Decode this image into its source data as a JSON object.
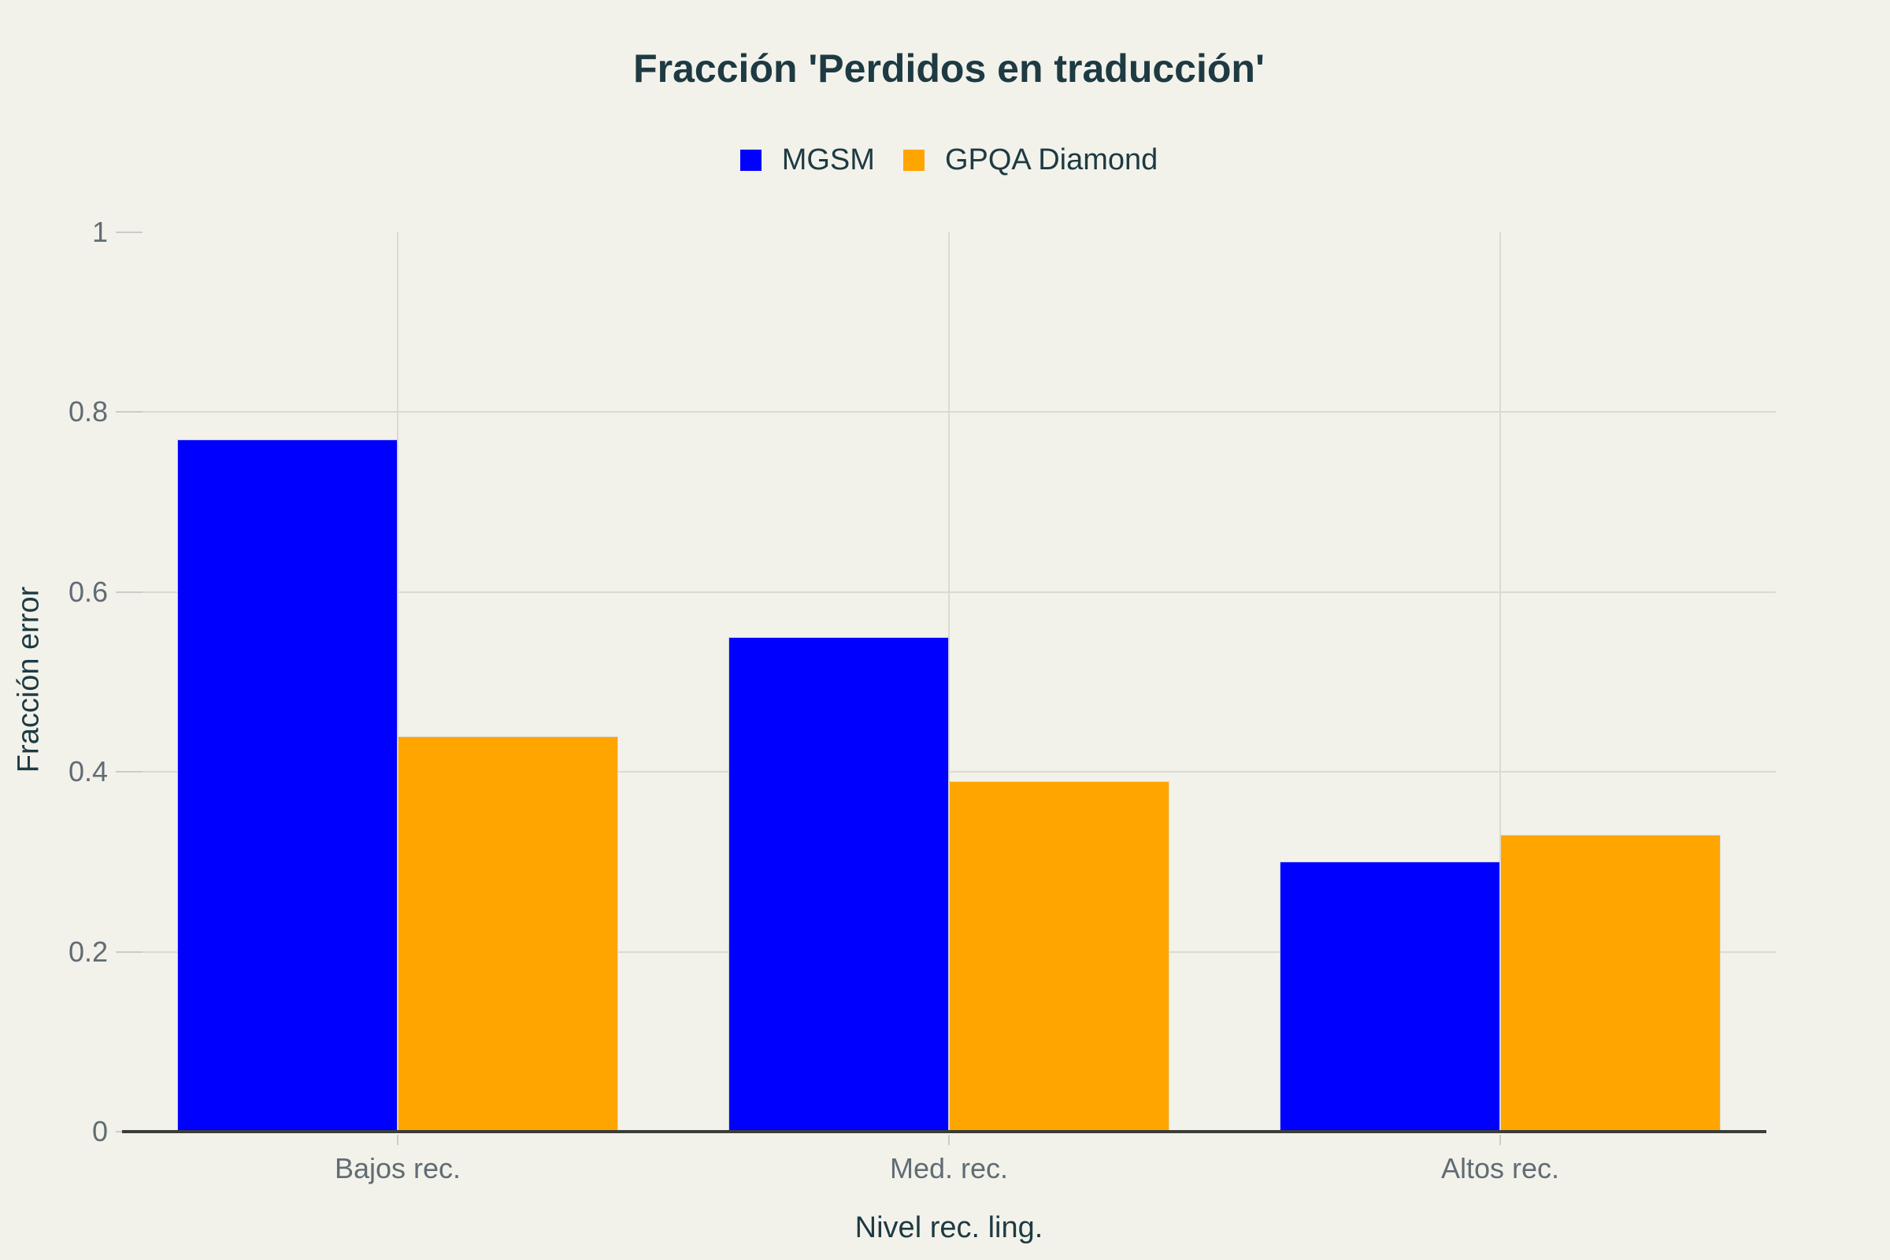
{
  "chart_data": {
    "type": "bar",
    "title": "Fracción 'Perdidos en traducción'",
    "xlabel": "Nivel rec. ling.",
    "ylabel": "Fracción error",
    "categories": [
      "Bajos rec.",
      "Med. rec.",
      "Altos rec."
    ],
    "series": [
      {
        "name": "MGSM",
        "color": "#0000FF",
        "values": [
          0.77,
          0.55,
          0.3
        ]
      },
      {
        "name": "GPQA Diamond",
        "color": "#FFA500",
        "values": [
          0.44,
          0.39,
          0.33
        ]
      }
    ],
    "ylim": [
      0,
      1
    ],
    "yticks": [
      0,
      0.2,
      0.4,
      0.6,
      0.8,
      1
    ],
    "grid": true,
    "legend_position": "top-center",
    "bar_group_width_fraction": 0.8
  },
  "colors": {
    "background": "#F2F2EB",
    "title_text": "#1E3A42",
    "axis_title_text": "#1E3A42",
    "legend_text": "#1E3A42",
    "tick_text": "#616C73",
    "gridline": "#D9DBD2",
    "tick_dash": "#CBCDC5",
    "axis_line": "#3B3E38",
    "series_mgsm": "#0000FF",
    "series_gpqa_diamond": "#FFA500"
  }
}
